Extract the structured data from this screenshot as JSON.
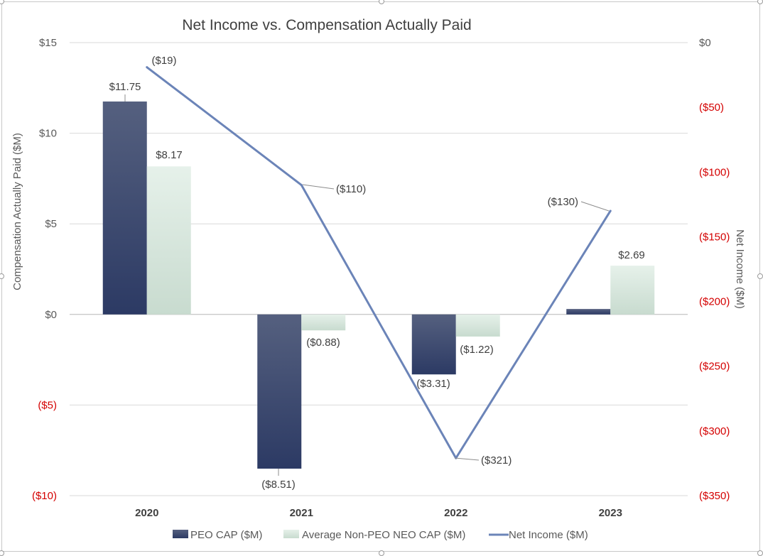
{
  "chart_data": {
    "type": "bar",
    "title": "Net Income vs. Compensation Actually Paid",
    "categories": [
      "2020",
      "2021",
      "2022",
      "2023"
    ],
    "series": [
      {
        "name": "PEO CAP ($M)",
        "kind": "bar",
        "axis": "left",
        "color": "#34406a",
        "values": [
          11.75,
          -8.51,
          -3.31,
          0.3
        ],
        "labels": [
          "$11.75",
          "($8.51)",
          "($3.31)",
          ""
        ]
      },
      {
        "name": "Average Non-PEO NEO CAP ($M)",
        "kind": "bar",
        "axis": "left",
        "color": "#dcebe1",
        "values": [
          8.17,
          -0.88,
          -1.22,
          2.69
        ],
        "labels": [
          "$8.17",
          "($0.88)",
          "($1.22)",
          "$2.69"
        ]
      },
      {
        "name": "Net Income ($M)",
        "kind": "line",
        "axis": "right",
        "color": "#6b84b8",
        "values": [
          -19,
          -110,
          -321,
          -130
        ],
        "labels": [
          "($19)",
          "($110)",
          "($321)",
          "($130)"
        ]
      }
    ],
    "y_left": {
      "label": "Compensation Actually Paid ($M)",
      "range": [
        -10,
        15
      ],
      "ticks": [
        15,
        10,
        5,
        0,
        -5,
        -10
      ],
      "tick_labels": [
        "$15",
        "$10",
        "$5",
        "$0",
        "($5)",
        "($10)"
      ]
    },
    "y_right": {
      "label": "Net Income ($M)",
      "range": [
        -350,
        0
      ],
      "ticks": [
        0,
        -50,
        -100,
        -150,
        -200,
        -250,
        -300,
        -350
      ],
      "tick_labels": [
        "$0",
        "($50)",
        "($100)",
        "($150)",
        "($200)",
        "($250)",
        "($300)",
        "($350)"
      ]
    },
    "negative_label_color": "#d40000",
    "grid": true,
    "legend_position": "bottom"
  }
}
